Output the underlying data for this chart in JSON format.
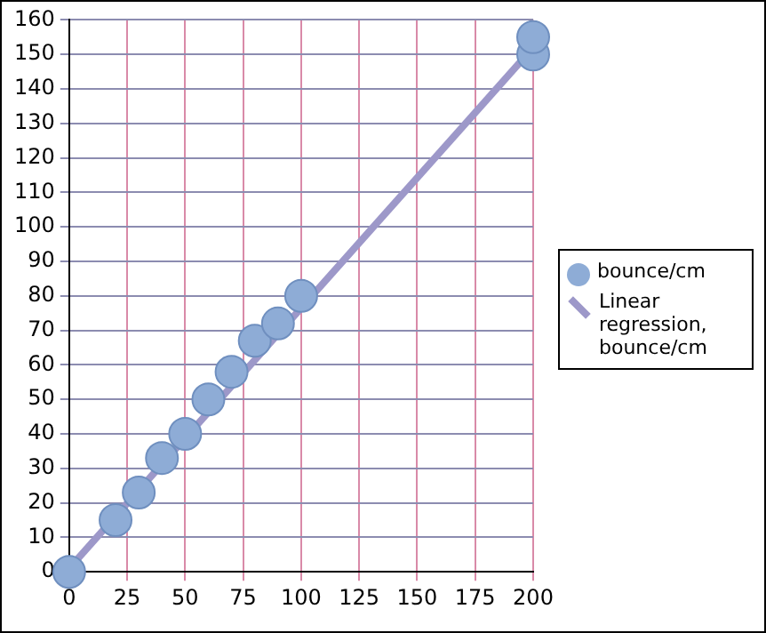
{
  "chart_data": {
    "type": "scatter",
    "x": [
      0,
      20,
      30,
      40,
      50,
      60,
      70,
      80,
      90,
      100,
      200,
      200
    ],
    "series": [
      {
        "name": "bounce/cm",
        "color": "#8eacd6",
        "marker": "circle",
        "values": [
          0,
          15,
          23,
          33,
          40,
          50,
          58,
          67,
          72,
          80,
          150,
          155
        ]
      },
      {
        "name": "Linear regression, bounce/cm",
        "type": "line",
        "marker": "none",
        "color": "#9d98c9",
        "x": [
          0,
          200
        ],
        "values": [
          1,
          152
        ]
      }
    ],
    "xlim": [
      0,
      200
    ],
    "xticks": [
      0,
      25,
      50,
      75,
      100,
      125,
      150,
      175,
      200
    ],
    "ylim": [
      0,
      160
    ],
    "yticks": [
      0,
      10,
      20,
      30,
      40,
      50,
      60,
      70,
      80,
      90,
      100,
      110,
      120,
      130,
      140,
      150,
      160
    ],
    "grid": true,
    "legend": "right"
  }
}
